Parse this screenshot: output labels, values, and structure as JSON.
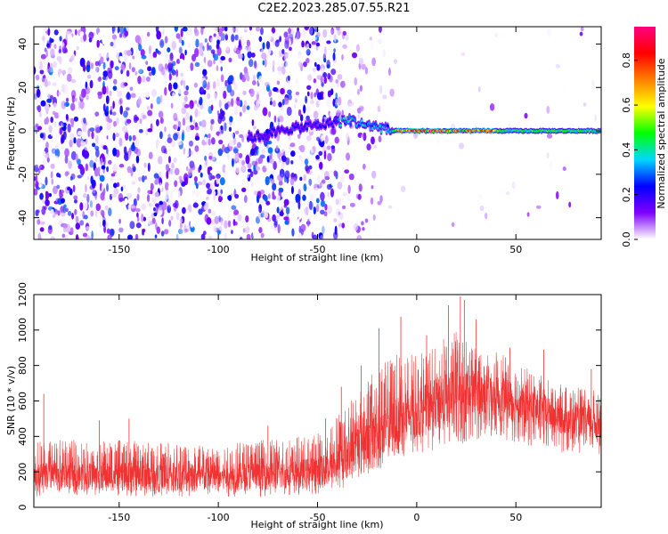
{
  "figure": {
    "title": "C2E2.2023.285.07.55.R21"
  },
  "chart_data": [
    {
      "type": "heatmap",
      "name": "spectrogram",
      "xlabel": "Height of straight line (km)",
      "ylabel": "Frequency (Hz)",
      "xlim": [
        -193,
        93
      ],
      "ylim": [
        -50,
        48
      ],
      "xticks": [
        -150,
        -100,
        -50,
        0,
        50
      ],
      "yticks": [
        -40,
        -20,
        0,
        20,
        40
      ],
      "grid": false,
      "features": {
        "noise_region_km": [
          -193,
          -40
        ],
        "transition_km": [
          -40,
          -10
        ],
        "signal_track": [
          {
            "x": -85,
            "y": -3
          },
          {
            "x": -75,
            "y": -2
          },
          {
            "x": -65,
            "y": 1
          },
          {
            "x": -55,
            "y": 2
          },
          {
            "x": -48,
            "y": 3
          },
          {
            "x": -40,
            "y": 4
          },
          {
            "x": -33,
            "y": 5
          },
          {
            "x": -28,
            "y": 3
          },
          {
            "x": -20,
            "y": 2
          },
          {
            "x": -12,
            "y": 0
          },
          {
            "x": 0,
            "y": 0
          },
          {
            "x": 20,
            "y": 0
          },
          {
            "x": 40,
            "y": 0
          },
          {
            "x": 60,
            "y": 0
          },
          {
            "x": 80,
            "y": 0
          },
          {
            "x": 93,
            "y": 0
          }
        ],
        "peak_amplitude_km": [
          -10,
          40
        ]
      },
      "colorbar": {
        "label": "Normalized spectral amplitude",
        "range": [
          0.0,
          0.95
        ],
        "ticks": [
          "0.0",
          "0.2",
          "0.4",
          "0.6",
          "0.8"
        ],
        "colormap": [
          "#ffffff",
          "#8000ff",
          "#0000ff",
          "#00d8ff",
          "#00ff00",
          "#ffff00",
          "#ff8000",
          "#ff0000",
          "#ff0080"
        ]
      }
    },
    {
      "type": "line",
      "name": "snr",
      "xlabel": "Height of straight line (km)",
      "ylabel": "SNR (10 * v/v)",
      "xlim": [
        -193,
        93
      ],
      "ylim": [
        0,
        1200
      ],
      "xticks": [
        -150,
        -100,
        -50,
        0,
        50
      ],
      "yticks": [
        0,
        200,
        400,
        600,
        800,
        1000,
        1200
      ],
      "grid": false,
      "color": "#f03232",
      "series": [
        {
          "name": "SNR envelope",
          "x": [
            -193,
            -175,
            -150,
            -125,
            -100,
            -80,
            -60,
            -45,
            -38,
            -30,
            -20,
            -10,
            0,
            10,
            20,
            30,
            40,
            50,
            60,
            70,
            80,
            93
          ],
          "low": [
            60,
            70,
            60,
            60,
            60,
            60,
            70,
            80,
            100,
            150,
            200,
            260,
            300,
            320,
            330,
            380,
            400,
            360,
            330,
            300,
            300,
            290
          ],
          "high": [
            380,
            380,
            380,
            370,
            370,
            380,
            400,
            440,
            560,
            680,
            780,
            880,
            860,
            930,
            1000,
            930,
            880,
            820,
            760,
            700,
            680,
            660
          ],
          "mean": [
            170,
            175,
            170,
            160,
            165,
            175,
            185,
            210,
            260,
            340,
            400,
            460,
            530,
            580,
            620,
            640,
            630,
            600,
            560,
            520,
            490,
            480
          ]
        }
      ],
      "spikes": [
        {
          "x": -188,
          "y": 640
        },
        {
          "x": -160,
          "y": 490
        },
        {
          "x": -145,
          "y": 500
        },
        {
          "x": -75,
          "y": 460
        },
        {
          "x": -46,
          "y": 500
        },
        {
          "x": -38,
          "y": 680
        },
        {
          "x": -28,
          "y": 800
        },
        {
          "x": -19,
          "y": 1010
        },
        {
          "x": -8,
          "y": 1075
        },
        {
          "x": 5,
          "y": 970
        },
        {
          "x": 16,
          "y": 1140
        },
        {
          "x": 22,
          "y": 1190
        },
        {
          "x": 24,
          "y": 1170
        },
        {
          "x": 30,
          "y": 1060
        },
        {
          "x": 47,
          "y": 900
        },
        {
          "x": 64,
          "y": 890
        },
        {
          "x": 88,
          "y": 780
        }
      ]
    }
  ]
}
